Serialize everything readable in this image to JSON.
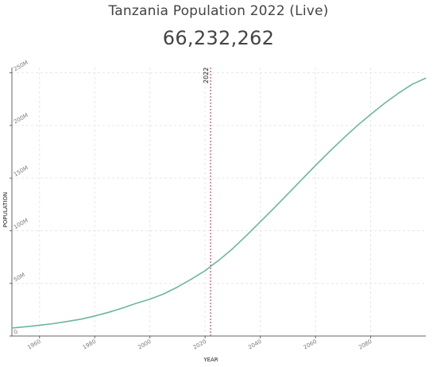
{
  "page": {
    "title": "Tanzania Population 2022 (Live)",
    "counter": "66,232,262"
  },
  "colors": {
    "line": "#6ab89b",
    "marker": "#d6456b",
    "text": "#444444"
  },
  "chart_data": {
    "type": "line",
    "title": "Tanzania Population 2022 (Live)",
    "xlabel": "YEAR",
    "ylabel": "POPULATION",
    "xlim": [
      1950,
      2100
    ],
    "ylim": [
      0,
      255000000
    ],
    "grid": true,
    "x_ticks": [
      {
        "value": 1960,
        "label": "1960"
      },
      {
        "value": 1980,
        "label": "1980"
      },
      {
        "value": 2000,
        "label": "2000"
      },
      {
        "value": 2020,
        "label": "2020"
      },
      {
        "value": 2040,
        "label": "2040"
      },
      {
        "value": 2060,
        "label": "2060"
      },
      {
        "value": 2080,
        "label": "2080"
      }
    ],
    "y_ticks": [
      {
        "value": 0,
        "label": "0"
      },
      {
        "value": 50000000,
        "label": "50M"
      },
      {
        "value": 100000000,
        "label": "100M"
      },
      {
        "value": 150000000,
        "label": "150M"
      },
      {
        "value": 200000000,
        "label": "200M"
      },
      {
        "value": 250000000,
        "label": "250M"
      }
    ],
    "marker": {
      "x": 2022,
      "label": "2022"
    },
    "series": [
      {
        "x": [
          1950,
          1955,
          1960,
          1965,
          1970,
          1975,
          1980,
          1985,
          1990,
          1995,
          2000,
          2005,
          2010,
          2015,
          2020,
          2022,
          2025,
          2030,
          2035,
          2040,
          2045,
          2050,
          2055,
          2060,
          2065,
          2070,
          2075,
          2080,
          2085,
          2090,
          2095,
          2100
        ],
        "values": [
          7600000,
          8800000,
          10200000,
          11800000,
          13800000,
          16000000,
          19000000,
          22500000,
          26500000,
          31000000,
          35000000,
          40000000,
          46500000,
          54000000,
          62000000,
          66200000,
          72000000,
          83000000,
          95500000,
          108500000,
          121500000,
          135000000,
          148500000,
          162000000,
          175000000,
          187500000,
          199500000,
          210500000,
          221000000,
          230500000,
          239000000,
          245000000
        ]
      }
    ]
  }
}
